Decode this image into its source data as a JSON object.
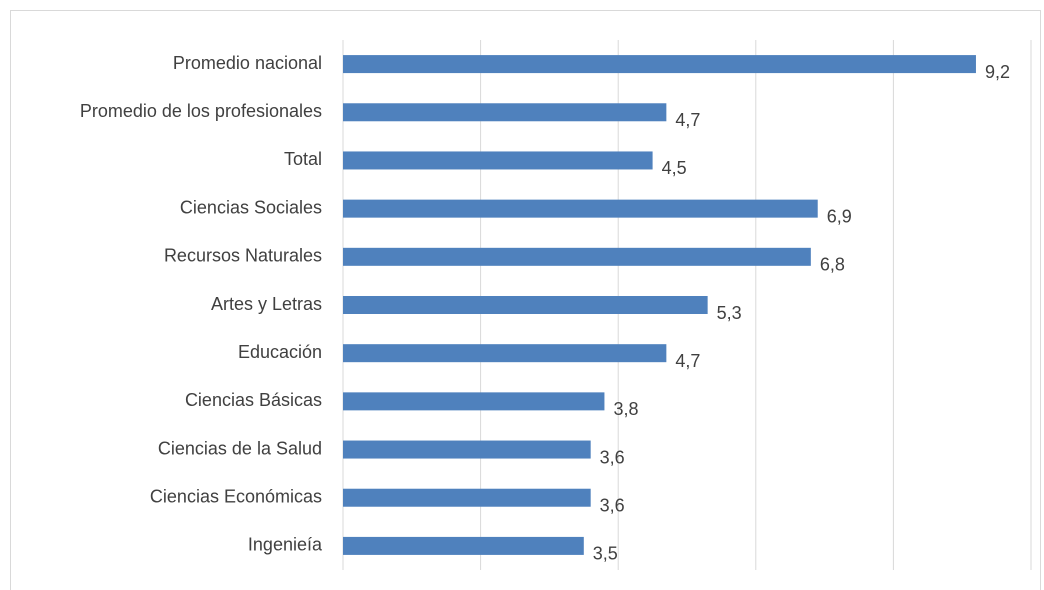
{
  "chart_data": {
    "type": "bar",
    "orientation": "horizontal",
    "categories": [
      "Promedio nacional",
      "Promedio de los profesionales",
      "Total",
      "Ciencias Sociales",
      "Recursos Naturales",
      "Artes y Letras",
      "Educación",
      "Ciencias Básicas",
      "Ciencias de la Salud",
      "Ciencias Económicas",
      "Ingenieía"
    ],
    "values": [
      9.2,
      4.7,
      4.5,
      6.9,
      6.8,
      5.3,
      4.7,
      3.8,
      3.6,
      3.6,
      3.5
    ],
    "value_labels": [
      "9,2",
      "4,7",
      "4,5",
      "6,9",
      "6,8",
      "5,3",
      "4,7",
      "3,8",
      "3,6",
      "3,6",
      "3,5"
    ],
    "color": "#4f81bd",
    "xlim": [
      0,
      10
    ],
    "xticks": [
      0,
      2,
      4,
      6,
      8,
      10
    ],
    "grid": true
  }
}
